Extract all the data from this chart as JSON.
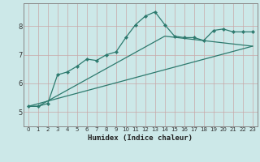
{
  "xlabel": "Humidex (Indice chaleur)",
  "background_color": "#cce8e8",
  "grid_color_major": "#c0d8d8",
  "grid_color_minor": "#d8ecec",
  "line_color": "#2d7a6e",
  "xlim": [
    -0.5,
    23.5
  ],
  "ylim": [
    4.5,
    8.8
  ],
  "xticks": [
    0,
    1,
    2,
    3,
    4,
    5,
    6,
    7,
    8,
    9,
    10,
    11,
    12,
    13,
    14,
    15,
    16,
    17,
    18,
    19,
    20,
    21,
    22,
    23
  ],
  "yticks": [
    5,
    6,
    7,
    8
  ],
  "line1_x": [
    0,
    1,
    2,
    3,
    4,
    5,
    6,
    7,
    8,
    9,
    10,
    11,
    12,
    13,
    14,
    15,
    16,
    17,
    18,
    19,
    20,
    21,
    22,
    23
  ],
  "line1_y": [
    5.2,
    5.2,
    5.3,
    6.3,
    6.4,
    6.6,
    6.85,
    6.8,
    7.0,
    7.1,
    7.6,
    8.05,
    8.35,
    8.5,
    8.05,
    7.65,
    7.6,
    7.6,
    7.5,
    7.85,
    7.9,
    7.8,
    7.8,
    7.8
  ],
  "line2_x": [
    0,
    23
  ],
  "line2_y": [
    5.2,
    7.3
  ],
  "line3_x": [
    0,
    1,
    14,
    23
  ],
  "line3_y": [
    5.2,
    5.2,
    7.65,
    7.3
  ]
}
